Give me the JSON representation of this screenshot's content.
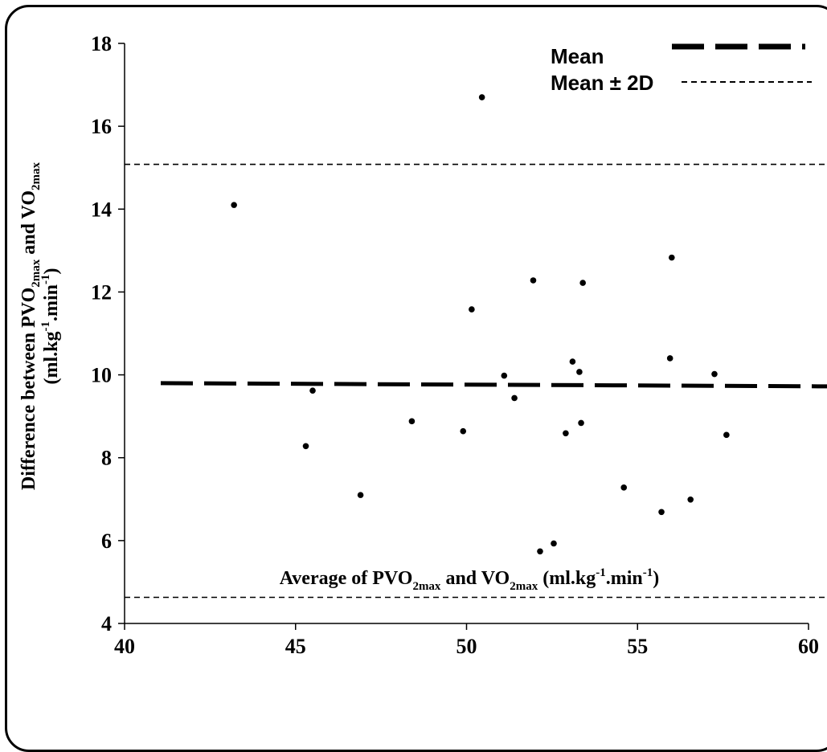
{
  "chart_data": {
    "type": "scatter",
    "xlabel_parts": {
      "pre": "Average of  PVO",
      "sub1": "2max",
      "mid": " and VO",
      "sub2": "2max",
      "unit_pre": " (ml.kg",
      "sup1": "-1",
      "unit_mid": ".min",
      "sup2": "-1",
      "unit_post": ")"
    },
    "ylabel_line1": {
      "pre": "Difference between PVO",
      "sub1": "2max",
      "mid": "  and VO",
      "sub2": "2max"
    },
    "ylabel_line2": {
      "pre": "(ml.kg",
      "sup1": "-1",
      "mid": ".min",
      "sup2": "-1",
      "post": ")"
    },
    "xlim": [
      40,
      60
    ],
    "ylim": [
      4,
      18
    ],
    "xticks": [
      "40",
      "45",
      "50",
      "55",
      "60"
    ],
    "yticks": [
      "4",
      "6",
      "8",
      "10",
      "12",
      "14",
      "16",
      "18"
    ],
    "grid": false,
    "legend": {
      "position": "top-right",
      "entries": [
        {
          "label": "Mean",
          "style": "long-dash"
        },
        {
          "label": "Mean ± 2D",
          "style": "short-dash"
        }
      ]
    },
    "reference_lines": {
      "mean": 9.8,
      "upper": 15.08,
      "lower": 4.63
    },
    "points": [
      {
        "x": 43.2,
        "y": 14.1
      },
      {
        "x": 45.3,
        "y": 8.28
      },
      {
        "x": 45.5,
        "y": 9.62
      },
      {
        "x": 46.9,
        "y": 7.1
      },
      {
        "x": 48.4,
        "y": 8.88
      },
      {
        "x": 49.9,
        "y": 8.64
      },
      {
        "x": 50.15,
        "y": 11.58
      },
      {
        "x": 50.45,
        "y": 16.7
      },
      {
        "x": 51.1,
        "y": 9.98
      },
      {
        "x": 51.4,
        "y": 9.44
      },
      {
        "x": 51.95,
        "y": 12.28
      },
      {
        "x": 52.15,
        "y": 5.74
      },
      {
        "x": 52.55,
        "y": 5.93
      },
      {
        "x": 52.9,
        "y": 8.59
      },
      {
        "x": 53.1,
        "y": 10.32
      },
      {
        "x": 53.3,
        "y": 10.07
      },
      {
        "x": 53.35,
        "y": 8.84
      },
      {
        "x": 53.4,
        "y": 12.22
      },
      {
        "x": 54.6,
        "y": 7.28
      },
      {
        "x": 55.7,
        "y": 6.69
      },
      {
        "x": 55.95,
        "y": 10.4
      },
      {
        "x": 56.0,
        "y": 12.83
      },
      {
        "x": 56.55,
        "y": 6.99
      },
      {
        "x": 57.25,
        "y": 10.02
      },
      {
        "x": 57.6,
        "y": 8.55
      }
    ]
  }
}
